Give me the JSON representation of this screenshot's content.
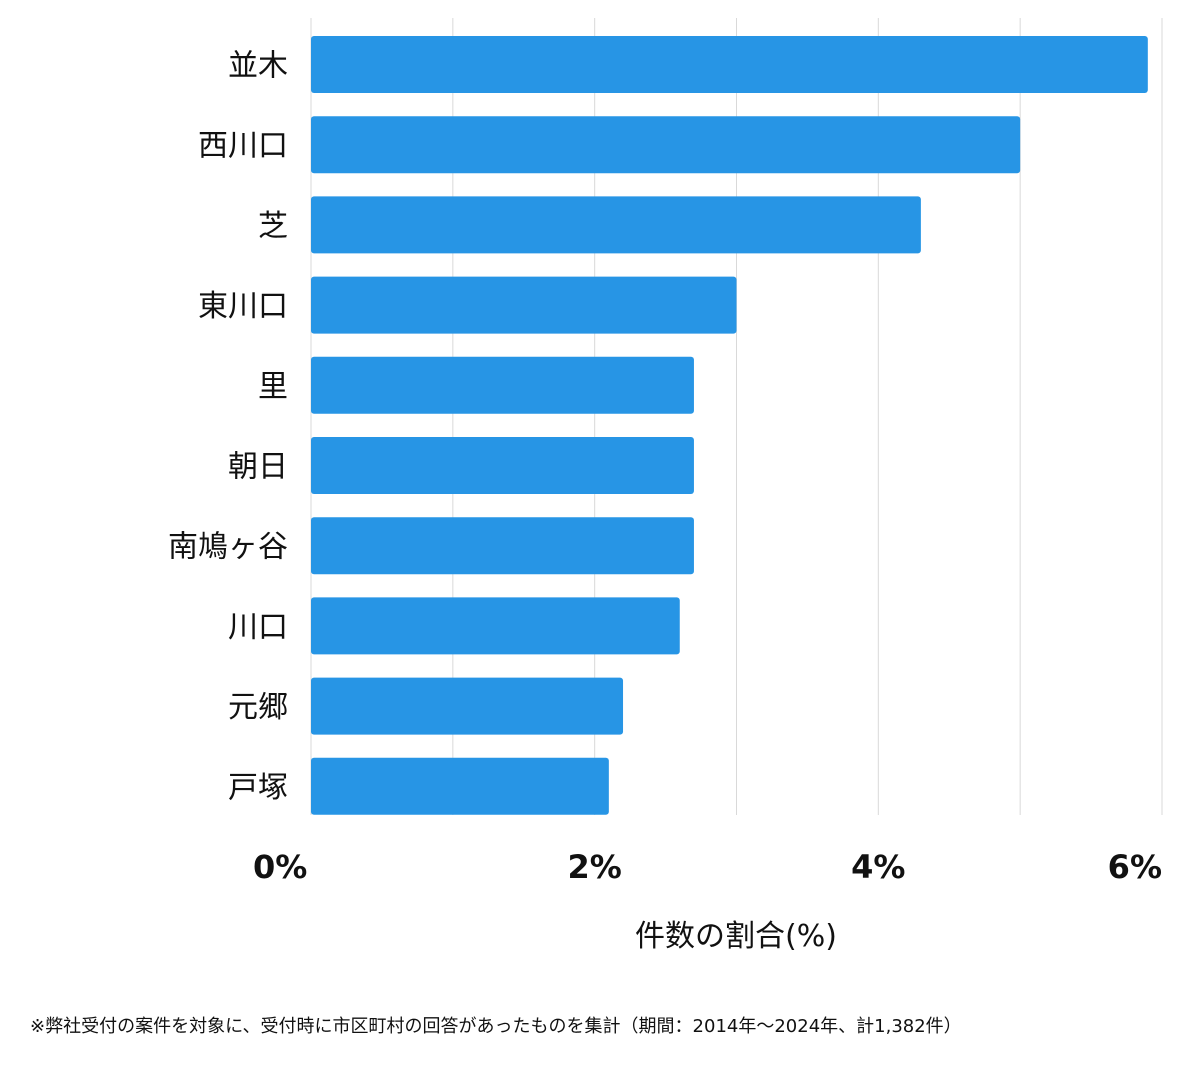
{
  "chart_data": {
    "type": "bar",
    "orientation": "horizontal",
    "categories": [
      "並木",
      "西川口",
      "芝",
      "東川口",
      "里",
      "朝日",
      "南鳩ヶ谷",
      "川口",
      "元郷",
      "戸塚"
    ],
    "values": [
      5.9,
      5.0,
      4.3,
      3.0,
      2.7,
      2.7,
      2.7,
      2.6,
      2.2,
      2.1
    ],
    "xlabel": "件数の割合(%)",
    "ylabel": "",
    "xlim": [
      0,
      6
    ],
    "xticks": [
      0,
      2,
      4,
      6
    ],
    "xtick_labels": [
      "0%",
      "2%",
      "4%",
      "6%"
    ],
    "grid": true,
    "bar_color": "#2795e5",
    "grid_color": "#d9d9d9"
  },
  "footnote": "※弊社受付の案件を対象に、受付時に市区町村の回答があったものを集計（期間：2014年〜2024年、計1,382件）"
}
